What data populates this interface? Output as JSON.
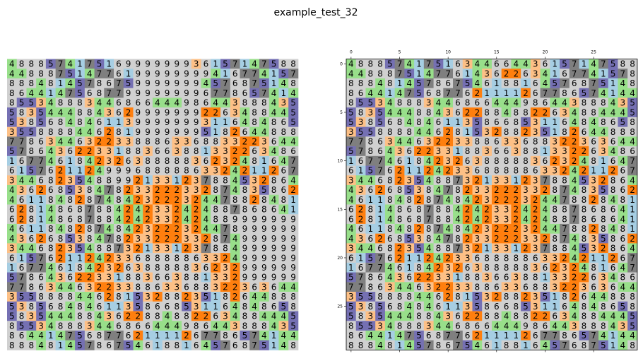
{
  "figure": {
    "suptitle": "example_test_32"
  },
  "palette": {
    "1": "#a6cee3",
    "2": "#ff7f0e",
    "3": "#fdc086",
    "4": "#98df8a",
    "5": "#7570b3",
    "6": "#d0d0d0",
    "7": "#7f7f7f",
    "8": "#d0d0d0",
    "9": "#d0d0d0"
  },
  "chart_data": [
    {
      "type": "heatmap",
      "panel": "left",
      "axes_visible": false,
      "rows": [
        "488857417516999999936157147588",
        "448887514776199999999416774157",
        "888481457867599999994576875148",
        "864414756877999999996778657414",
        "855348883446866444986443888435",
        "583544488436299999992263488445",
        "538568484611399999993116484865",
        "355888844628199999995182644888",
        "778634463223388863368833223644",
        "578643622331883663881332263486",
        "167746184232638888836232481647",
        "615762112499968888863324211267",
        "344682354889921331237884532864",
        "436268538478233222332874835862",
        "461184828748423222324478828481",
        "628148687884242332424887868641",
        "628148687884242332424889999999",
        "461184828748423222324478999999",
        "436268538478233222332874999999",
        "344682354887321331237884999999",
        "615762112423368888863324999999",
        "167746184232638888836232999999",
        "578643622331883663881332999999",
        "778634463223388633688322363644",
        "355888844628153288235182644888",
        "538568484611358668531164848658",
        "583544488436228848822634884445",
        "855348883446866444986443888435",
        "864414756877621111267786574144",
        "888481457867546188164576875148"
      ]
    },
    {
      "type": "heatmap",
      "panel": "right",
      "axes_visible": true,
      "x_ticks": [
        "0",
        "5",
        "10",
        "15",
        "20",
        "25"
      ],
      "y_ticks": [
        "0",
        "5",
        "10",
        "15",
        "20",
        "25"
      ],
      "rows": [
        "488857417516344664436157147588",
        "448887514776143622634167741578",
        "888481457867546188164576875148",
        "864414756877621111267786574144",
        "855348883446866444986443888435",
        "583544488436228848822634884445",
        "538568484611358668531164848658",
        "355888844628153288235182644888",
        "778634463223388633688322363644",
        "578643622331883663881332263486",
        "167746184232638888836232481647",
        "615762112423368888863324211267",
        "344682354887321331237884532864",
        "436268538478233222332874835862",
        "461184828748423222324478828481",
        "628148687884242332424887868641",
        "628148687884242332424887868641",
        "461184828748423222324478828481",
        "436268538478233222332874835862",
        "344682354887321331237884532864",
        "615762112423368888863324211267",
        "167746184232638888836232481647",
        "578643622331883663881332263486",
        "778634463223388633688322363644",
        "355888844628153288235182644888",
        "538568484611358668531164848658",
        "583544488436228848822634884445",
        "855348883446866444986443888435",
        "864414756877621111267786574144",
        "888481457867546188164576875148"
      ]
    }
  ]
}
